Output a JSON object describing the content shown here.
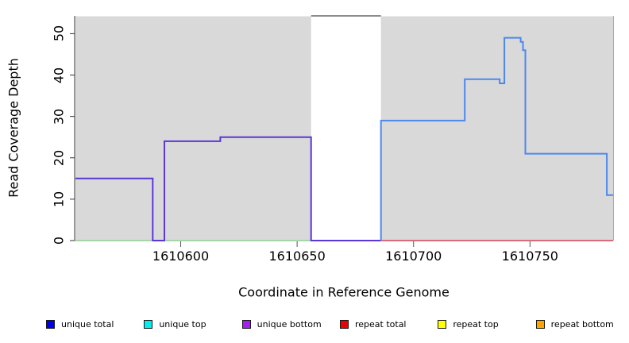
{
  "chart_data": {
    "type": "line",
    "subtype": "step",
    "title": "",
    "xlabel": "Coordinate in Reference Genome",
    "ylabel": "Read Coverage Depth",
    "xlim": [
      1610554.8,
      1610785.7
    ],
    "ylim": [
      0,
      54.3
    ],
    "x_ticks": [
      1610600,
      1610650,
      1610700,
      1610750
    ],
    "y_ticks": [
      0,
      10,
      20,
      30,
      40,
      50
    ],
    "grid": false,
    "plot_bg": "#ffffff",
    "shaded_region_color": "#d9d9d9",
    "shaded_regions": [
      {
        "x1": 1610554.8,
        "x2": 1610656
      },
      {
        "x1": 1610686,
        "x2": 1610785.7
      }
    ],
    "gap_top_border": {
      "x1": 1610656,
      "x2": 1610686
    },
    "series": [
      {
        "name": "green zero baseline (top strands)",
        "color": "#8fcf8f",
        "width": 1.6,
        "points": [
          [
            1610554.8,
            0
          ],
          [
            1610656,
            0
          ]
        ]
      },
      {
        "name": "repeat total zero baseline",
        "color": "#d6405a",
        "width": 1.6,
        "points": [
          [
            1610686,
            0
          ],
          [
            1610785.7,
            0
          ]
        ]
      },
      {
        "name": "unique bottom",
        "color": "#5b36d9",
        "width": 2,
        "points": [
          [
            1610554.8,
            15
          ],
          [
            1610588,
            15
          ],
          [
            1610588,
            0
          ],
          [
            1610593,
            0
          ],
          [
            1610593,
            24
          ],
          [
            1610617,
            24
          ],
          [
            1610617,
            25
          ],
          [
            1610656,
            25
          ],
          [
            1610656,
            0
          ],
          [
            1610686,
            0
          ]
        ]
      },
      {
        "name": "unique total",
        "color": "#4d87ee",
        "width": 2,
        "points": [
          [
            1610686,
            0
          ],
          [
            1610686,
            29
          ],
          [
            1610722,
            29
          ],
          [
            1610722,
            39
          ],
          [
            1610737,
            39
          ],
          [
            1610737,
            38
          ],
          [
            1610739,
            38
          ],
          [
            1610739,
            49
          ],
          [
            1610746,
            49
          ],
          [
            1610746,
            48
          ],
          [
            1610747,
            48
          ],
          [
            1610747,
            46
          ],
          [
            1610748,
            46
          ],
          [
            1610748,
            21
          ],
          [
            1610783,
            21
          ],
          [
            1610783,
            11
          ],
          [
            1610785.7,
            11
          ]
        ]
      }
    ]
  },
  "legend": {
    "items": [
      {
        "label": "unique total",
        "color": "#0000ee"
      },
      {
        "label": "unique top",
        "color": "#00eeee"
      },
      {
        "label": "unique bottom",
        "color": "#a020f0"
      },
      {
        "label": "repeat total",
        "color": "#ee0000"
      },
      {
        "label": "repeat top",
        "color": "#ffff00"
      },
      {
        "label": "repeat bottom",
        "color": "#ffa500"
      }
    ]
  }
}
